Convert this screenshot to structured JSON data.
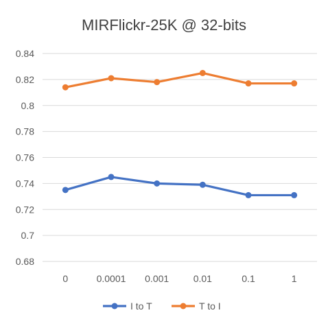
{
  "chart_data": {
    "type": "line",
    "title": "MIRFlickr-25K @ 32-bits",
    "xlabel": "",
    "ylabel": "",
    "categories": [
      "0",
      "0.0001",
      "0.001",
      "0.01",
      "0.1",
      "1"
    ],
    "ylim": [
      0.68,
      0.84
    ],
    "yticks": [
      "0.84",
      "0.82",
      "0.8",
      "0.78",
      "0.76",
      "0.74",
      "0.72",
      "0.7",
      "0.68"
    ],
    "grid": true,
    "legend_position": "bottom",
    "series": [
      {
        "name": "I to T",
        "color": "#4472C4",
        "values": [
          0.735,
          0.745,
          0.74,
          0.739,
          0.731,
          0.731
        ]
      },
      {
        "name": "T to I",
        "color": "#ED7D31",
        "values": [
          0.814,
          0.821,
          0.818,
          0.825,
          0.817,
          0.817
        ]
      }
    ]
  }
}
